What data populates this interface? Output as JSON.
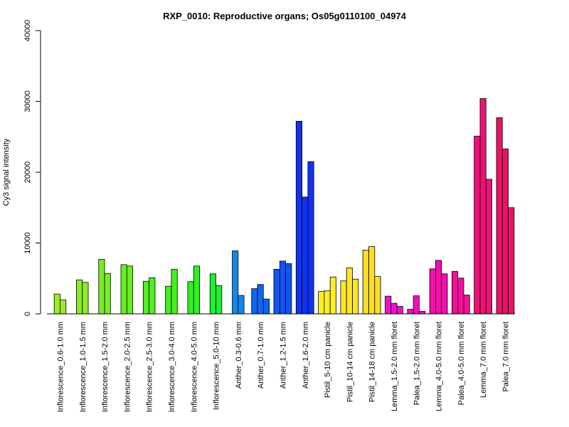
{
  "chart_data": {
    "type": "bar",
    "title": "RXP_0010: Reproductive organs; Os05g0110100_04974",
    "xlabel": "",
    "ylabel": "Cy3 signal intensity",
    "ylim": [
      0,
      40000
    ],
    "yticks": [
      0,
      10000,
      20000,
      30000,
      40000
    ],
    "grid": false,
    "legend": "none",
    "groups": [
      {
        "label": "Inflorescence_0.6-1.0 mm",
        "color": "#99ee22",
        "values": [
          2800,
          1950
        ]
      },
      {
        "label": "Inflorescence_1.0-1.5 mm",
        "color": "#88ee22",
        "values": [
          4800,
          4450
        ]
      },
      {
        "label": "Inflorescence_1.5-2.0 mm",
        "color": "#77ee22",
        "values": [
          7700,
          5700
        ]
      },
      {
        "label": "Inflorescence_2.0-2.5 mm",
        "color": "#66ee22",
        "values": [
          6950,
          6750
        ]
      },
      {
        "label": "Inflorescence_2.5-3.0 mm",
        "color": "#55ee22",
        "values": [
          4600,
          5100
        ]
      },
      {
        "label": "Inflorescence_3.0-4.0 mm",
        "color": "#44ee22",
        "values": [
          3900,
          6300
        ]
      },
      {
        "label": "Inflorescence_4.0-5.0 mm",
        "color": "#33ee22",
        "values": [
          4550,
          6750
        ]
      },
      {
        "label": "Inflorescence_5.0-10 mm",
        "color": "#22ee33",
        "values": [
          5650,
          4000
        ]
      },
      {
        "label": "Anther_0.3-0.6 mm",
        "color": "#1188ee",
        "values": [
          8900,
          2600
        ]
      },
      {
        "label": "Anther_0.7-1.0 mm",
        "color": "#1166ee",
        "values": [
          3550,
          4150,
          2100
        ]
      },
      {
        "label": "Anther_1.2-1.5 mm",
        "color": "#1155ee",
        "values": [
          6300,
          7450,
          7100
        ]
      },
      {
        "label": "Anther_1.6-2.0 mm",
        "color": "#1133ee",
        "values": [
          27200,
          16500,
          21500
        ]
      },
      {
        "label": "Pistil_5-10 cm panicle",
        "color": "#ffee22",
        "values": [
          3150,
          3250,
          5200
        ]
      },
      {
        "label": "Pistil_10-14 cm panicle",
        "color": "#ffe622",
        "values": [
          4650,
          6500,
          4900
        ]
      },
      {
        "label": "Pistil_14-18 cm panicle",
        "color": "#ffdd22",
        "values": [
          9000,
          9500,
          5300
        ]
      },
      {
        "label": "Lemma_1.5-2.0 mm floret",
        "color": "#ee11cc",
        "values": [
          2500,
          1500,
          1050
        ]
      },
      {
        "label": "Palea_1.5-2.0 mm floret",
        "color": "#ee11bb",
        "values": [
          650,
          2550,
          350
        ]
      },
      {
        "label": "Lemma_4.0-5.0 mm floret",
        "color": "#ee11aa",
        "values": [
          6350,
          7550,
          5650
        ]
      },
      {
        "label": "Palea_4.0-5.0 mm floret",
        "color": "#ee1199",
        "values": [
          6000,
          5050,
          2650
        ]
      },
      {
        "label": "Lemma_7.0 mm floret",
        "color": "#ee1177",
        "values": [
          25100,
          30400,
          19000
        ]
      },
      {
        "label": "Palea_7.0 mm floret",
        "color": "#ee1166",
        "values": [
          27700,
          23300,
          15000
        ]
      }
    ]
  }
}
